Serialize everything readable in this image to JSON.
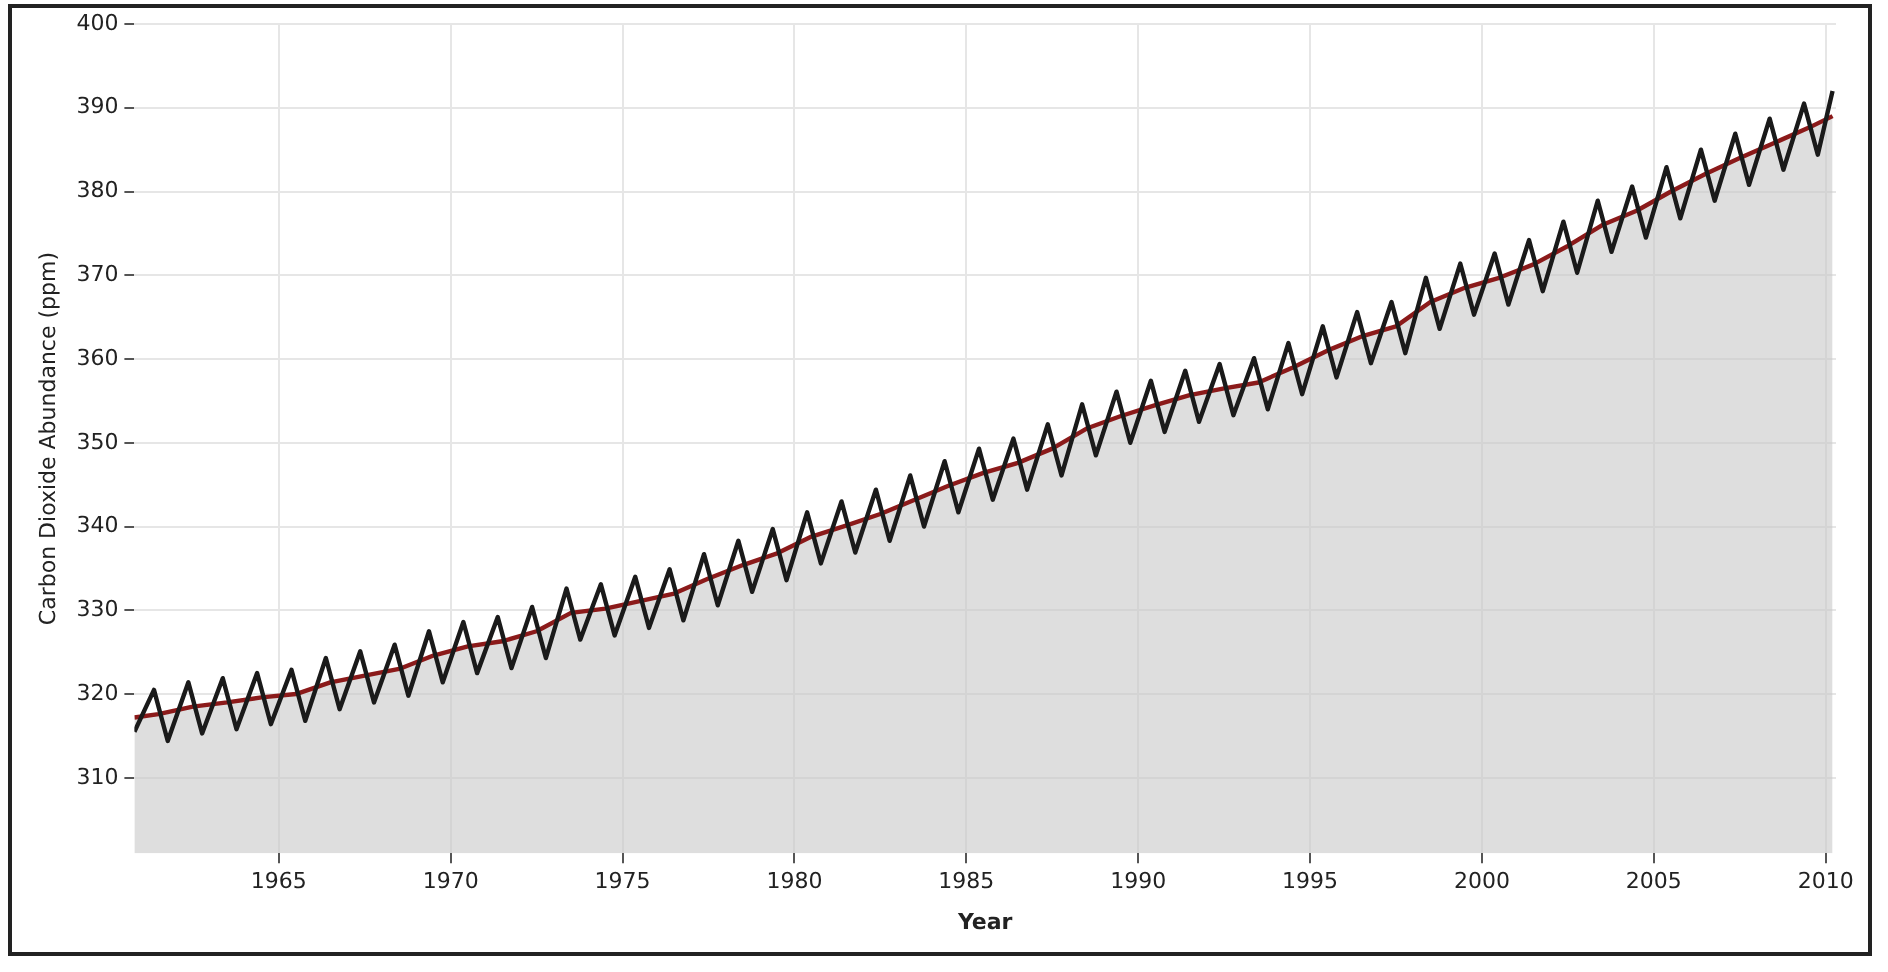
{
  "chart_data": {
    "type": "line",
    "xlabel": "Year",
    "ylabel": "Carbon Dioxide Abundance (ppm)",
    "xlim": [
      1960.8,
      2010.3
    ],
    "xticks": [
      1965,
      1970,
      1975,
      1980,
      1985,
      1990,
      1995,
      2000,
      2005,
      2010
    ],
    "ylim": [
      301,
      400
    ],
    "yticks": [
      310,
      320,
      330,
      340,
      350,
      360,
      370,
      380,
      390,
      400
    ],
    "grid": true,
    "legend": false,
    "marker": "none",
    "line_style": "solid",
    "series": [
      {
        "type": "area",
        "color": "#8b1a1a",
        "x": [
          1960.8,
          1961.5,
          1962.5,
          1963.5,
          1964.5,
          1965.5,
          1966.5,
          1967.5,
          1968.5,
          1969.5,
          1970.5,
          1971.5,
          1972.5,
          1973.5,
          1974.5,
          1975.5,
          1976.5,
          1977.5,
          1978.5,
          1979.5,
          1980.5,
          1981.5,
          1982.5,
          1983.5,
          1984.5,
          1985.5,
          1986.5,
          1987.5,
          1988.5,
          1989.5,
          1990.5,
          1991.5,
          1992.5,
          1993.5,
          1994.5,
          1995.5,
          1996.5,
          1997.5,
          1998.5,
          1999.5,
          2000.5,
          2001.5,
          2002.5,
          2003.5,
          2004.5,
          2005.5,
          2006.5,
          2007.5,
          2008.5,
          2009.5,
          2010.2
        ],
        "values": [
          317.2,
          317.6,
          318.5,
          319.0,
          319.6,
          320.0,
          321.4,
          322.2,
          323.0,
          324.6,
          325.7,
          326.3,
          327.5,
          329.7,
          330.2,
          331.1,
          332.0,
          333.8,
          335.4,
          336.8,
          338.8,
          340.1,
          341.5,
          343.2,
          344.9,
          346.4,
          347.6,
          349.3,
          351.7,
          353.2,
          354.5,
          355.7,
          356.5,
          357.2,
          359.0,
          361.0,
          362.7,
          363.9,
          366.8,
          368.5,
          369.7,
          371.3,
          373.5,
          376.0,
          377.7,
          380.0,
          382.1,
          384.0,
          385.8,
          387.6,
          389.0
        ]
      },
      {
        "type": "line",
        "color": "#1a1a1a",
        "x": [
          1960.8,
          1961.37,
          1961.77,
          1962.37,
          1962.77,
          1963.37,
          1963.77,
          1964.37,
          1964.77,
          1965.37,
          1965.77,
          1966.37,
          1966.77,
          1967.37,
          1967.77,
          1968.37,
          1968.77,
          1969.37,
          1969.77,
          1970.37,
          1970.77,
          1971.37,
          1971.77,
          1972.37,
          1972.77,
          1973.37,
          1973.77,
          1974.37,
          1974.77,
          1975.37,
          1975.77,
          1976.37,
          1976.77,
          1977.37,
          1977.77,
          1978.37,
          1978.77,
          1979.37,
          1979.77,
          1980.37,
          1980.77,
          1981.37,
          1981.77,
          1982.37,
          1982.77,
          1983.37,
          1983.77,
          1984.37,
          1984.77,
          1985.37,
          1985.77,
          1986.37,
          1986.77,
          1987.37,
          1987.77,
          1988.37,
          1988.77,
          1989.37,
          1989.77,
          1990.37,
          1990.77,
          1991.37,
          1991.77,
          1992.37,
          1992.77,
          1993.37,
          1993.77,
          1994.37,
          1994.77,
          1995.37,
          1995.77,
          1996.37,
          1996.77,
          1997.37,
          1997.77,
          1998.37,
          1998.77,
          1999.37,
          1999.77,
          2000.37,
          2000.77,
          2001.37,
          2001.77,
          2002.37,
          2002.77,
          2003.37,
          2003.77,
          2004.37,
          2004.77,
          2005.37,
          2005.77,
          2006.37,
          2006.77,
          2007.37,
          2007.77,
          2008.37,
          2008.77,
          2009.37,
          2009.77,
          2010.2
        ],
        "values": [
          315.5,
          320.5,
          314.4,
          321.4,
          315.3,
          321.9,
          315.8,
          322.5,
          316.4,
          322.9,
          316.8,
          324.3,
          318.2,
          325.1,
          319.0,
          325.9,
          319.8,
          327.5,
          321.4,
          328.6,
          322.5,
          329.2,
          323.1,
          330.4,
          324.3,
          332.6,
          326.5,
          333.1,
          327.0,
          334.0,
          327.9,
          334.9,
          328.8,
          336.7,
          330.6,
          338.3,
          332.2,
          339.7,
          333.6,
          341.7,
          335.6,
          343.0,
          336.9,
          344.4,
          338.3,
          346.1,
          340.0,
          347.8,
          341.7,
          349.3,
          343.2,
          350.5,
          344.4,
          352.2,
          346.1,
          354.6,
          348.5,
          356.1,
          350.0,
          357.4,
          351.3,
          358.6,
          352.5,
          359.4,
          353.3,
          360.1,
          354.0,
          361.9,
          355.8,
          363.9,
          357.8,
          365.6,
          359.5,
          366.8,
          360.7,
          369.7,
          363.6,
          371.4,
          365.3,
          372.6,
          366.5,
          374.2,
          368.1,
          376.4,
          370.3,
          378.9,
          372.8,
          380.6,
          374.5,
          382.9,
          376.8,
          385.0,
          378.9,
          386.9,
          380.8,
          388.7,
          382.6,
          390.5,
          384.4,
          392.0
        ]
      }
    ]
  }
}
